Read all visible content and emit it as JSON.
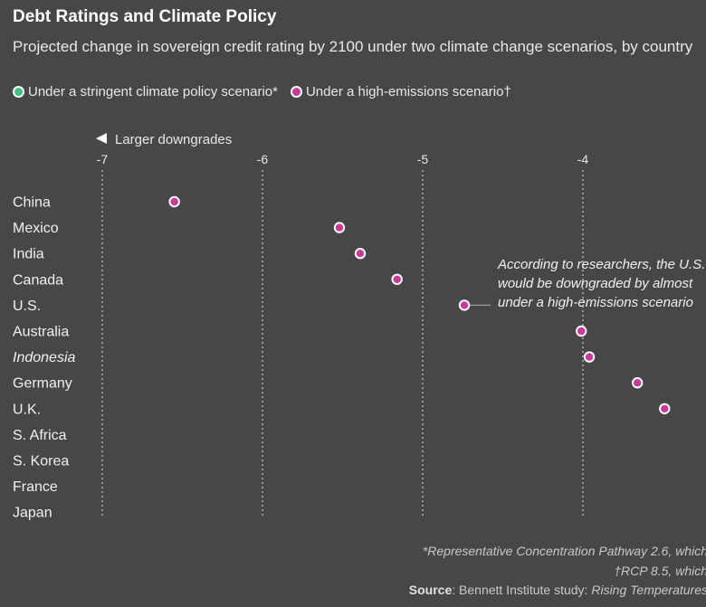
{
  "header": {
    "title": "Debt Ratings and Climate Policy",
    "subtitle": "Projected change in sovereign credit rating by 2100 under two climate change scenarios, by country"
  },
  "legend": {
    "items": [
      {
        "label": "Under a stringent climate policy scenario*",
        "color": "#3bc47c"
      },
      {
        "label": "Under a high-emissions scenario†",
        "color": "#d0359a"
      }
    ]
  },
  "chart_data": {
    "type": "scatter",
    "title": "Debt Ratings and Climate Policy",
    "axis_note": "Larger downgrades",
    "x_ticks": [
      -7,
      -6,
      -5,
      -4
    ],
    "xlim": [
      -7,
      -3.2
    ],
    "categories": [
      "China",
      "Mexico",
      "India",
      "Canada",
      "U.S.",
      "Australia",
      "Indonesia",
      "Germany",
      "U.K.",
      "S. Africa",
      "S. Korea",
      "France",
      "Japan"
    ],
    "italic_categories": [
      "Indonesia"
    ],
    "series": [
      {
        "name": "Under a high-emissions scenario†",
        "color": "#d0359a",
        "values": [
          -6.55,
          -5.52,
          -5.39,
          -5.16,
          -4.74,
          -4.01,
          -3.96,
          -3.66,
          -3.49,
          null,
          null,
          null,
          null
        ]
      },
      {
        "name": "Under a stringent climate policy scenario*",
        "color": "#3bc47c",
        "values": [
          null,
          null,
          null,
          null,
          null,
          null,
          null,
          null,
          null,
          null,
          null,
          null,
          null
        ]
      }
    ],
    "annotation": {
      "category": "U.S.",
      "lines": [
        "According to researchers, the U.S.",
        "would be downgraded by almost",
        "under a high-emissions scenario"
      ]
    }
  },
  "footer": {
    "note1": "*Representative Concentration Pathway 2.6, which",
    "note2": "†RCP 8.5, which",
    "source_label": "Source",
    "source_text": ": Bennett Institute study: ",
    "source_title": "Rising Temperatures"
  }
}
